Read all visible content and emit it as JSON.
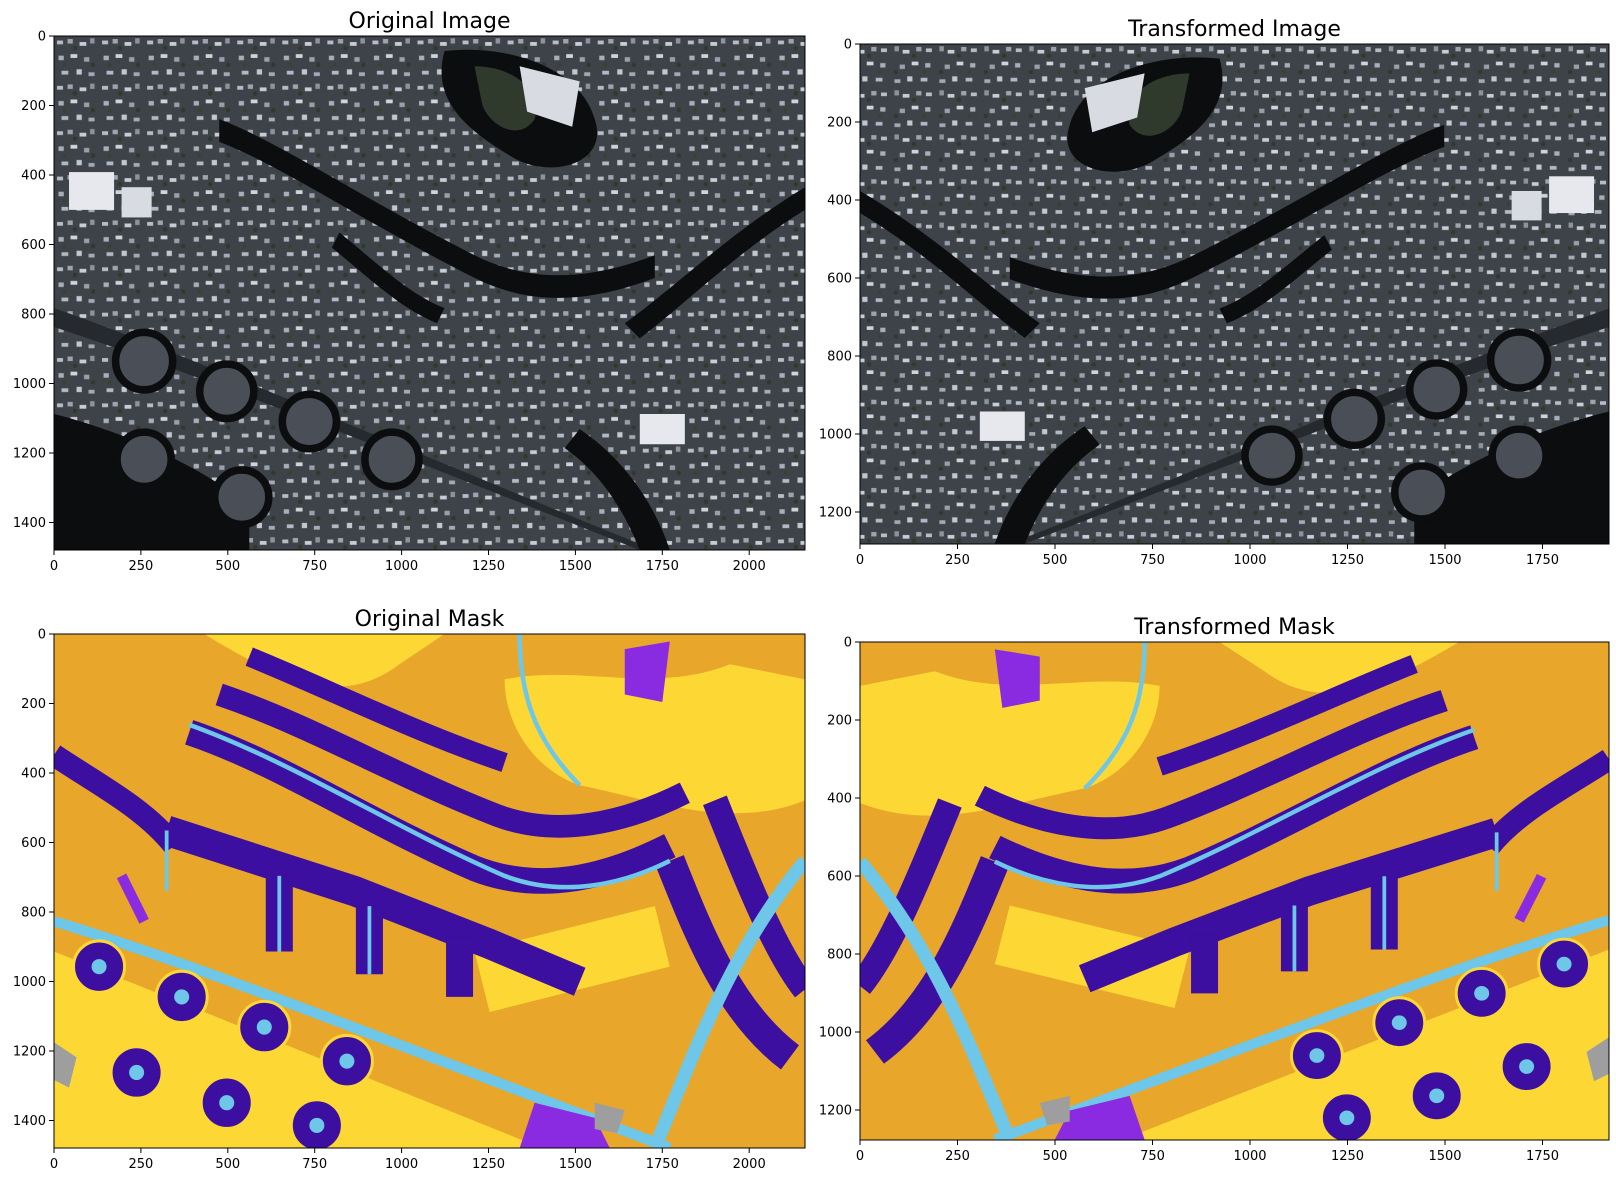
{
  "panels": [
    {
      "id": "original-image",
      "title": "Original Image",
      "kind": "photo",
      "xticks": [
        "0",
        "250",
        "500",
        "750",
        "1000",
        "1250",
        "1500",
        "1750",
        "2000"
      ],
      "yticks": [
        "0",
        "200",
        "400",
        "600",
        "800",
        "1000",
        "1200",
        "1400"
      ]
    },
    {
      "id": "transformed-image",
      "title": "Transformed Image",
      "kind": "photo",
      "xticks": [
        "0",
        "250",
        "500",
        "750",
        "1000",
        "1250",
        "1500",
        "1750"
      ],
      "yticks": [
        "0",
        "200",
        "400",
        "600",
        "800",
        "1000",
        "1200"
      ]
    },
    {
      "id": "original-mask",
      "title": "Original Mask",
      "kind": "mask",
      "xticks": [
        "0",
        "250",
        "500",
        "750",
        "1000",
        "1250",
        "1500",
        "1750",
        "2000"
      ],
      "yticks": [
        "0",
        "200",
        "400",
        "600",
        "800",
        "1000",
        "1200",
        "1400"
      ]
    },
    {
      "id": "transformed-mask",
      "title": "Transformed Mask",
      "kind": "mask",
      "xticks": [
        "0",
        "250",
        "500",
        "750",
        "1000",
        "1250",
        "1500",
        "1750"
      ],
      "yticks": [
        "0",
        "200",
        "400",
        "600",
        "800",
        "1000",
        "1200"
      ]
    }
  ],
  "mask_colors": {
    "background": "#e8a62a",
    "building": "#3d0fa0",
    "water": "#8a2be2",
    "road": "#6ec6e8",
    "vegetation": "#fdd835",
    "other": "#9e9e9e"
  },
  "photo_colors": {
    "dark": "#0b0d0f",
    "ground": "#5a5e66",
    "roof": "#b8bcc6",
    "vegetation": "#2f3a2c",
    "highlight": "#e6e8ee"
  }
}
